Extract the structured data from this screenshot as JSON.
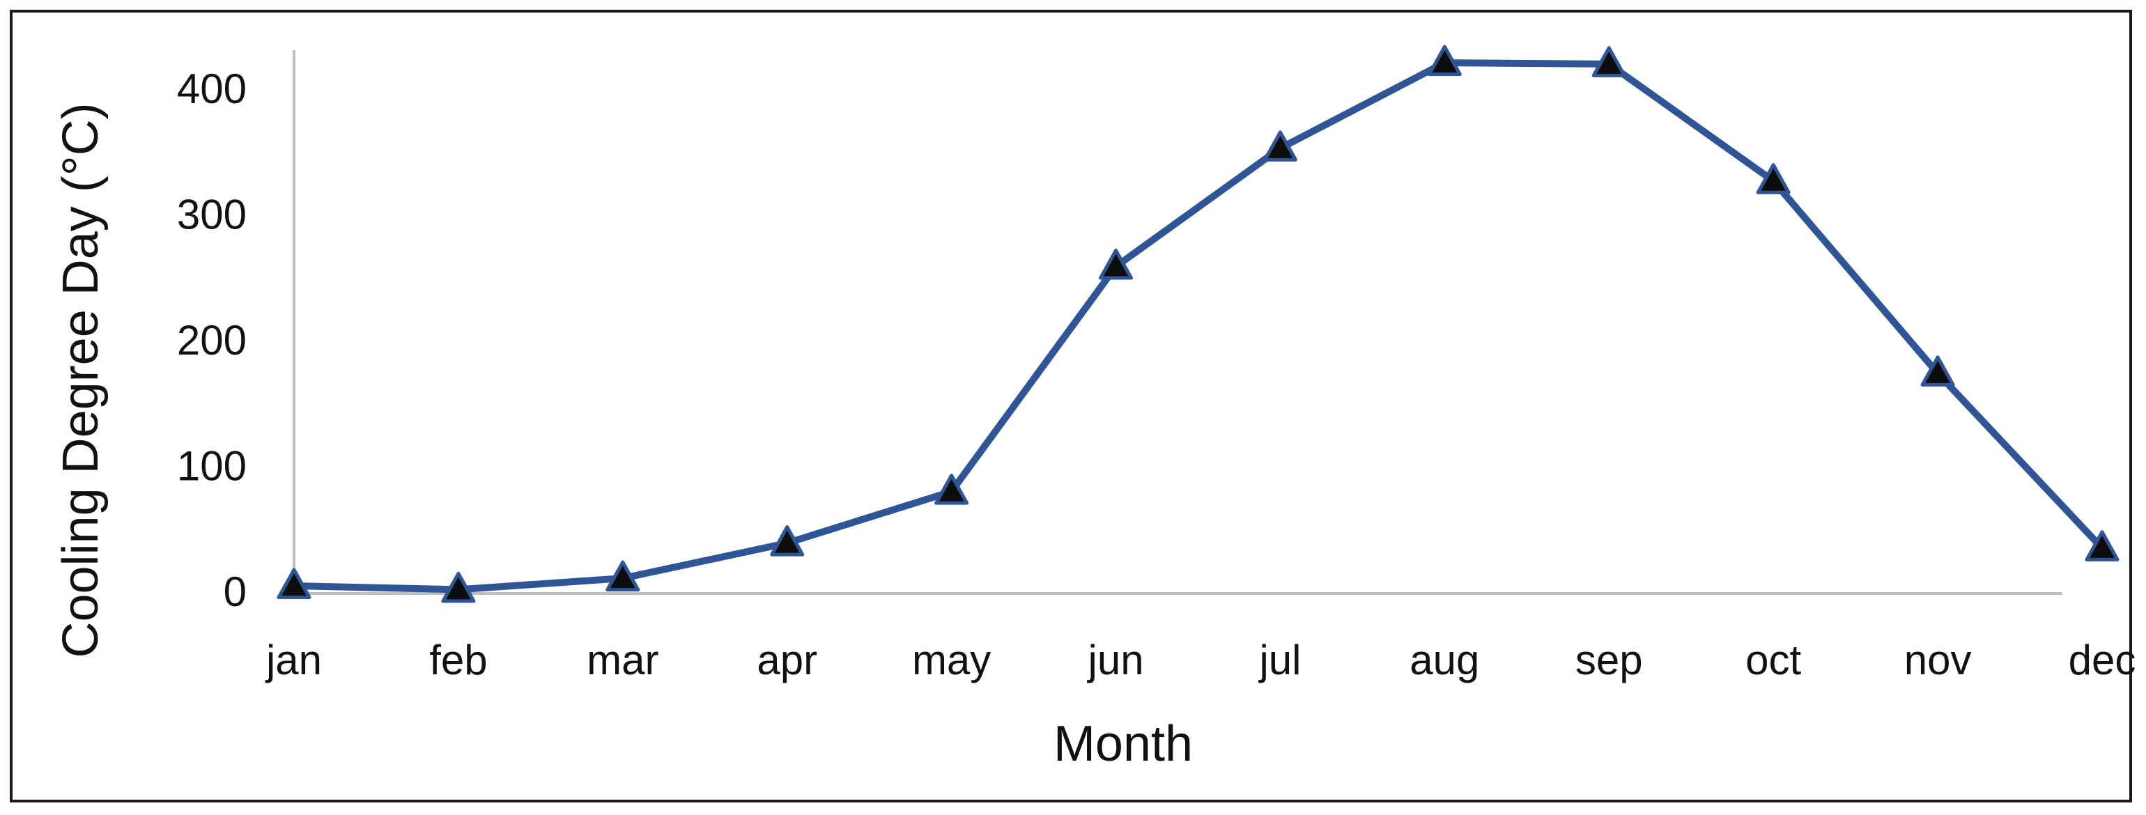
{
  "chart_data": {
    "type": "line",
    "categories": [
      "jan",
      "feb",
      "mar",
      "apr",
      "may",
      "jun",
      "jul",
      "aug",
      "sep",
      "oct",
      "nov",
      "dec"
    ],
    "series": [
      {
        "values": [
          5,
          2,
          11,
          39,
          80,
          259,
          353,
          421,
          420,
          327,
          174,
          35
        ],
        "color": "#2f5597",
        "marker": "triangle",
        "marker_color": "#0d0d0d"
      }
    ],
    "xlabel": "Month",
    "ylabel": "Cooling Degree Day (°C)",
    "ylim": [
      0,
      400
    ],
    "yticks": [
      0,
      100,
      200,
      300,
      400
    ],
    "grid": false
  }
}
